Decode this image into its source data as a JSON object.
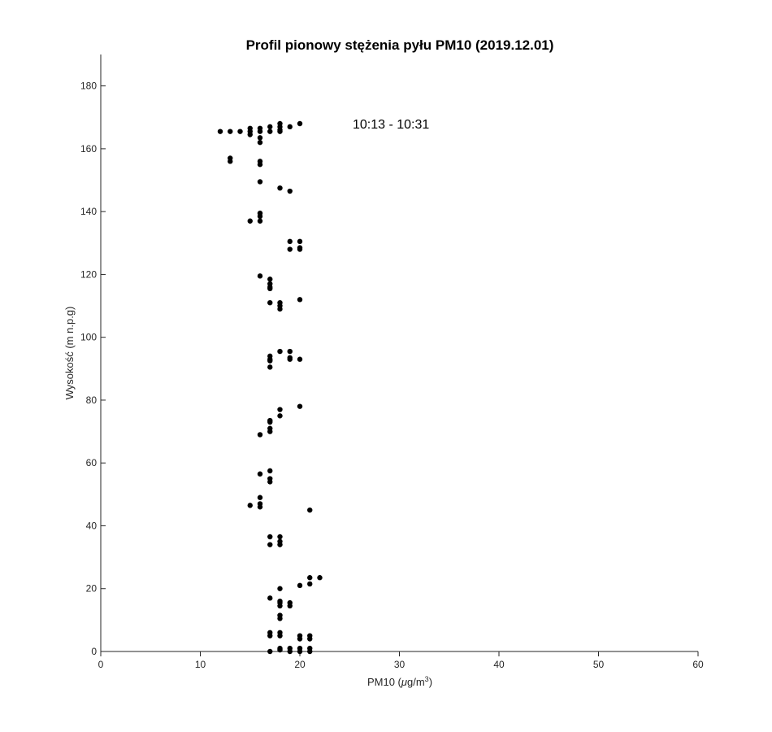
{
  "chart_data": {
    "type": "scatter",
    "title": "Profil pionowy stężenia pyłu PM10 (2019.12.01)",
    "xlabel_text": "PM10 (",
    "xlabel_mu": "μ",
    "xlabel_unit": "g/m",
    "xlabel_sup": "3",
    "xlabel_close": ")",
    "ylabel": "Wysokość (m n.p.g)",
    "annotation": "10:13 - 10:31",
    "xlim": [
      0,
      60
    ],
    "ylim": [
      0,
      190
    ],
    "x_ticks": [
      0,
      10,
      20,
      30,
      40,
      50,
      60
    ],
    "y_ticks": [
      0,
      20,
      40,
      60,
      80,
      100,
      120,
      140,
      160,
      180
    ],
    "grid": false,
    "marker_color": "#000000",
    "points": [
      {
        "x": 12,
        "y": 165.5
      },
      {
        "x": 13,
        "y": 165.5
      },
      {
        "x": 14,
        "y": 165.5
      },
      {
        "x": 15,
        "y": 166.5
      },
      {
        "x": 15,
        "y": 165.5
      },
      {
        "x": 15,
        "y": 164.5
      },
      {
        "x": 16,
        "y": 166.5
      },
      {
        "x": 16,
        "y": 165.5
      },
      {
        "x": 16,
        "y": 163.5
      },
      {
        "x": 16,
        "y": 162.0
      },
      {
        "x": 17,
        "y": 167.0
      },
      {
        "x": 17,
        "y": 165.5
      },
      {
        "x": 18,
        "y": 168.0
      },
      {
        "x": 18,
        "y": 167.0
      },
      {
        "x": 18,
        "y": 166.0
      },
      {
        "x": 18,
        "y": 165.5
      },
      {
        "x": 19,
        "y": 167.0
      },
      {
        "x": 20,
        "y": 168.0
      },
      {
        "x": 13,
        "y": 157.0
      },
      {
        "x": 13,
        "y": 156.0
      },
      {
        "x": 16,
        "y": 156.0
      },
      {
        "x": 16,
        "y": 155.0
      },
      {
        "x": 16,
        "y": 149.5
      },
      {
        "x": 18,
        "y": 147.5
      },
      {
        "x": 19,
        "y": 146.5
      },
      {
        "x": 16,
        "y": 139.5
      },
      {
        "x": 16,
        "y": 138.5
      },
      {
        "x": 16,
        "y": 137.0
      },
      {
        "x": 15,
        "y": 137.0
      },
      {
        "x": 19,
        "y": 130.5
      },
      {
        "x": 20,
        "y": 130.5
      },
      {
        "x": 19,
        "y": 128.0
      },
      {
        "x": 20,
        "y": 128.5
      },
      {
        "x": 20,
        "y": 128.0
      },
      {
        "x": 16,
        "y": 119.5
      },
      {
        "x": 17,
        "y": 118.5
      },
      {
        "x": 17,
        "y": 117.0
      },
      {
        "x": 17,
        "y": 116.0
      },
      {
        "x": 17,
        "y": 115.5
      },
      {
        "x": 17,
        "y": 111.0
      },
      {
        "x": 18,
        "y": 111.0
      },
      {
        "x": 18,
        "y": 110.0
      },
      {
        "x": 18,
        "y": 109.0
      },
      {
        "x": 20,
        "y": 112.0
      },
      {
        "x": 18,
        "y": 95.5
      },
      {
        "x": 19,
        "y": 95.5
      },
      {
        "x": 19,
        "y": 93.5
      },
      {
        "x": 19,
        "y": 93.0
      },
      {
        "x": 20,
        "y": 93.0
      },
      {
        "x": 17,
        "y": 94.0
      },
      {
        "x": 17,
        "y": 93.0
      },
      {
        "x": 17,
        "y": 92.5
      },
      {
        "x": 17,
        "y": 90.5
      },
      {
        "x": 20,
        "y": 78.0
      },
      {
        "x": 18,
        "y": 77.0
      },
      {
        "x": 18,
        "y": 75.0
      },
      {
        "x": 17,
        "y": 73.5
      },
      {
        "x": 17,
        "y": 73.0
      },
      {
        "x": 17,
        "y": 71.0
      },
      {
        "x": 17,
        "y": 70.0
      },
      {
        "x": 16,
        "y": 69.0
      },
      {
        "x": 17,
        "y": 57.5
      },
      {
        "x": 16,
        "y": 56.5
      },
      {
        "x": 17,
        "y": 55.0
      },
      {
        "x": 17,
        "y": 54.0
      },
      {
        "x": 16,
        "y": 49.0
      },
      {
        "x": 16,
        "y": 47.0
      },
      {
        "x": 16,
        "y": 46.0
      },
      {
        "x": 15,
        "y": 46.5
      },
      {
        "x": 21,
        "y": 45.0
      },
      {
        "x": 17,
        "y": 36.5
      },
      {
        "x": 18,
        "y": 36.5
      },
      {
        "x": 18,
        "y": 35.0
      },
      {
        "x": 17,
        "y": 34.0
      },
      {
        "x": 18,
        "y": 34.0
      },
      {
        "x": 21,
        "y": 23.5
      },
      {
        "x": 22,
        "y": 23.5
      },
      {
        "x": 21,
        "y": 21.5
      },
      {
        "x": 20,
        "y": 21.0
      },
      {
        "x": 18,
        "y": 20.0
      },
      {
        "x": 17,
        "y": 17.0
      },
      {
        "x": 18,
        "y": 16.0
      },
      {
        "x": 18,
        "y": 15.5
      },
      {
        "x": 19,
        "y": 15.5
      },
      {
        "x": 18,
        "y": 14.5
      },
      {
        "x": 19,
        "y": 14.5
      },
      {
        "x": 18,
        "y": 11.5
      },
      {
        "x": 18,
        "y": 10.5
      },
      {
        "x": 17,
        "y": 6.0
      },
      {
        "x": 18,
        "y": 6.0
      },
      {
        "x": 17,
        "y": 5.0
      },
      {
        "x": 18,
        "y": 5.0
      },
      {
        "x": 20,
        "y": 5.0
      },
      {
        "x": 21,
        "y": 5.0
      },
      {
        "x": 20,
        "y": 4.0
      },
      {
        "x": 21,
        "y": 4.0
      },
      {
        "x": 17,
        "y": 0.0
      },
      {
        "x": 18,
        "y": 0.5
      },
      {
        "x": 18,
        "y": 1.0
      },
      {
        "x": 19,
        "y": 1.0
      },
      {
        "x": 19,
        "y": 0.0
      },
      {
        "x": 20,
        "y": 1.0
      },
      {
        "x": 20,
        "y": 0.0
      },
      {
        "x": 21,
        "y": 1.0
      },
      {
        "x": 21,
        "y": 0.0
      }
    ]
  }
}
